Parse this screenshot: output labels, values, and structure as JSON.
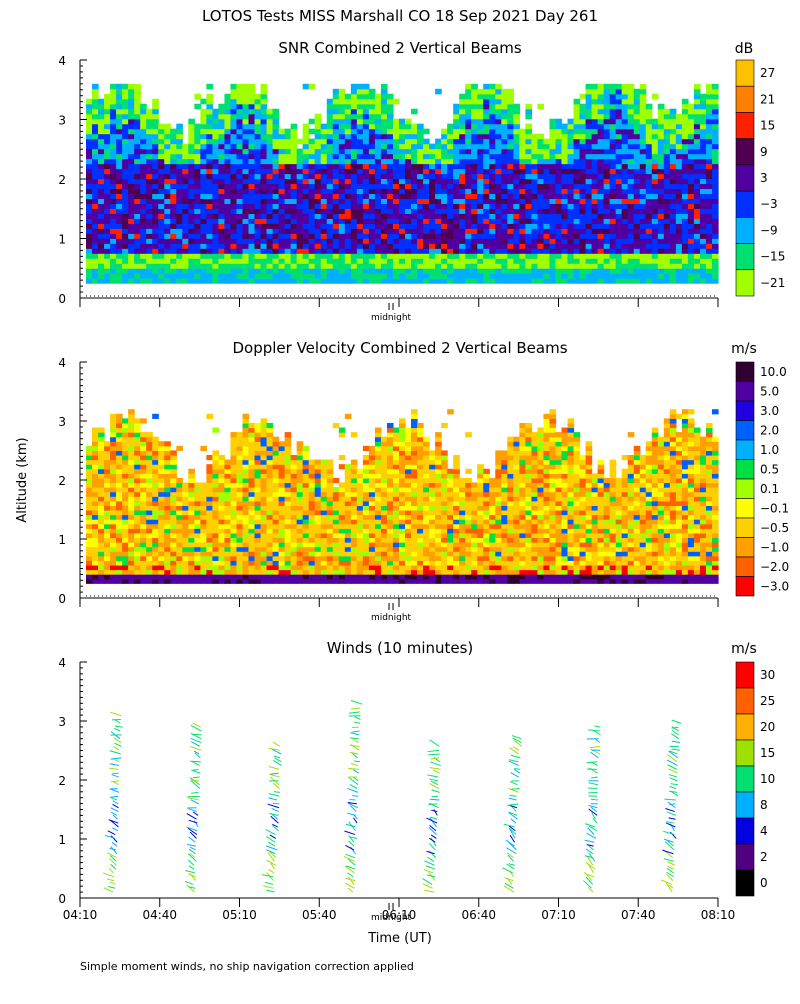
{
  "page": {
    "title": "LOTOS Tests MISS Marshall CO  18 Sep 2021 Day 261",
    "y_axis_label": "Altitude (km)",
    "x_axis_label": "Time (UT)",
    "midnight_label": "midnight",
    "footnote": "Simple moment winds, no ship navigation correction applied"
  },
  "chart_data": [
    {
      "type": "heatmap",
      "title": "SNR Combined 2 Vertical Beams",
      "units": "dB",
      "ylim": [
        0,
        4
      ],
      "y_ticks": [
        "0",
        "1",
        "2",
        "3",
        "4"
      ],
      "x_range_utc": [
        "04:10",
        "08:10"
      ],
      "colorbar_labels": [
        "27",
        "21",
        "15",
        "9",
        "3",
        "−3",
        "−9",
        "−15",
        "−21"
      ],
      "colorbar_colors": [
        "#ffc000",
        "#ff8000",
        "#ff2000",
        "#500050",
        "#5000a0",
        "#0030ff",
        "#00b0ff",
        "#00e070",
        "#a0ff00"
      ],
      "description_structure": "strong returns 0.3-2.5 km, weaker above up to 3.5 km"
    },
    {
      "type": "heatmap",
      "title": "Doppler Velocity Combined 2 Vertical Beams",
      "units": "m/s",
      "ylim": [
        0,
        4
      ],
      "y_ticks": [
        "0",
        "1",
        "2",
        "3",
        "4"
      ],
      "x_range_utc": [
        "04:10",
        "08:10"
      ],
      "colorbar_labels": [
        "10.0",
        "5.0",
        "3.0",
        "2.0",
        "1.0",
        "0.5",
        "0.1",
        "−0.1",
        "−0.5",
        "−1.0",
        "−2.0",
        "−3.0"
      ],
      "colorbar_colors": [
        "#300030",
        "#5000a0",
        "#2000e0",
        "#0060ff",
        "#00b0ff",
        "#00e040",
        "#a0ff00",
        "#ffff00",
        "#ffd000",
        "#ffa000",
        "#ff6000",
        "#ff0000"
      ]
    },
    {
      "type": "scatter",
      "title": "Winds (10 minutes)",
      "units": "m/s",
      "ylim": [
        0,
        4
      ],
      "y_ticks": [
        "0",
        "1",
        "2",
        "3",
        "4"
      ],
      "x_ticks": [
        "04:10",
        "04:40",
        "05:10",
        "05:40",
        "06:10",
        "06:40",
        "07:10",
        "07:40",
        "08:10"
      ],
      "colorbar_labels": [
        "30",
        "25",
        "20",
        "15",
        "10",
        "8",
        "4",
        "2",
        "0"
      ],
      "colorbar_colors": [
        "#ff0000",
        "#ff6000",
        "#ffb000",
        "#a0e000",
        "#00e070",
        "#00b0ff",
        "#0000e0",
        "#500080",
        "#000000"
      ],
      "profile_times": [
        "04:25",
        "04:55",
        "05:25",
        "05:55",
        "06:25",
        "06:55",
        "07:25",
        "07:55"
      ],
      "profile_tops_km": [
        3.1,
        2.9,
        2.6,
        3.3,
        2.6,
        2.7,
        2.9,
        3.0
      ]
    }
  ]
}
